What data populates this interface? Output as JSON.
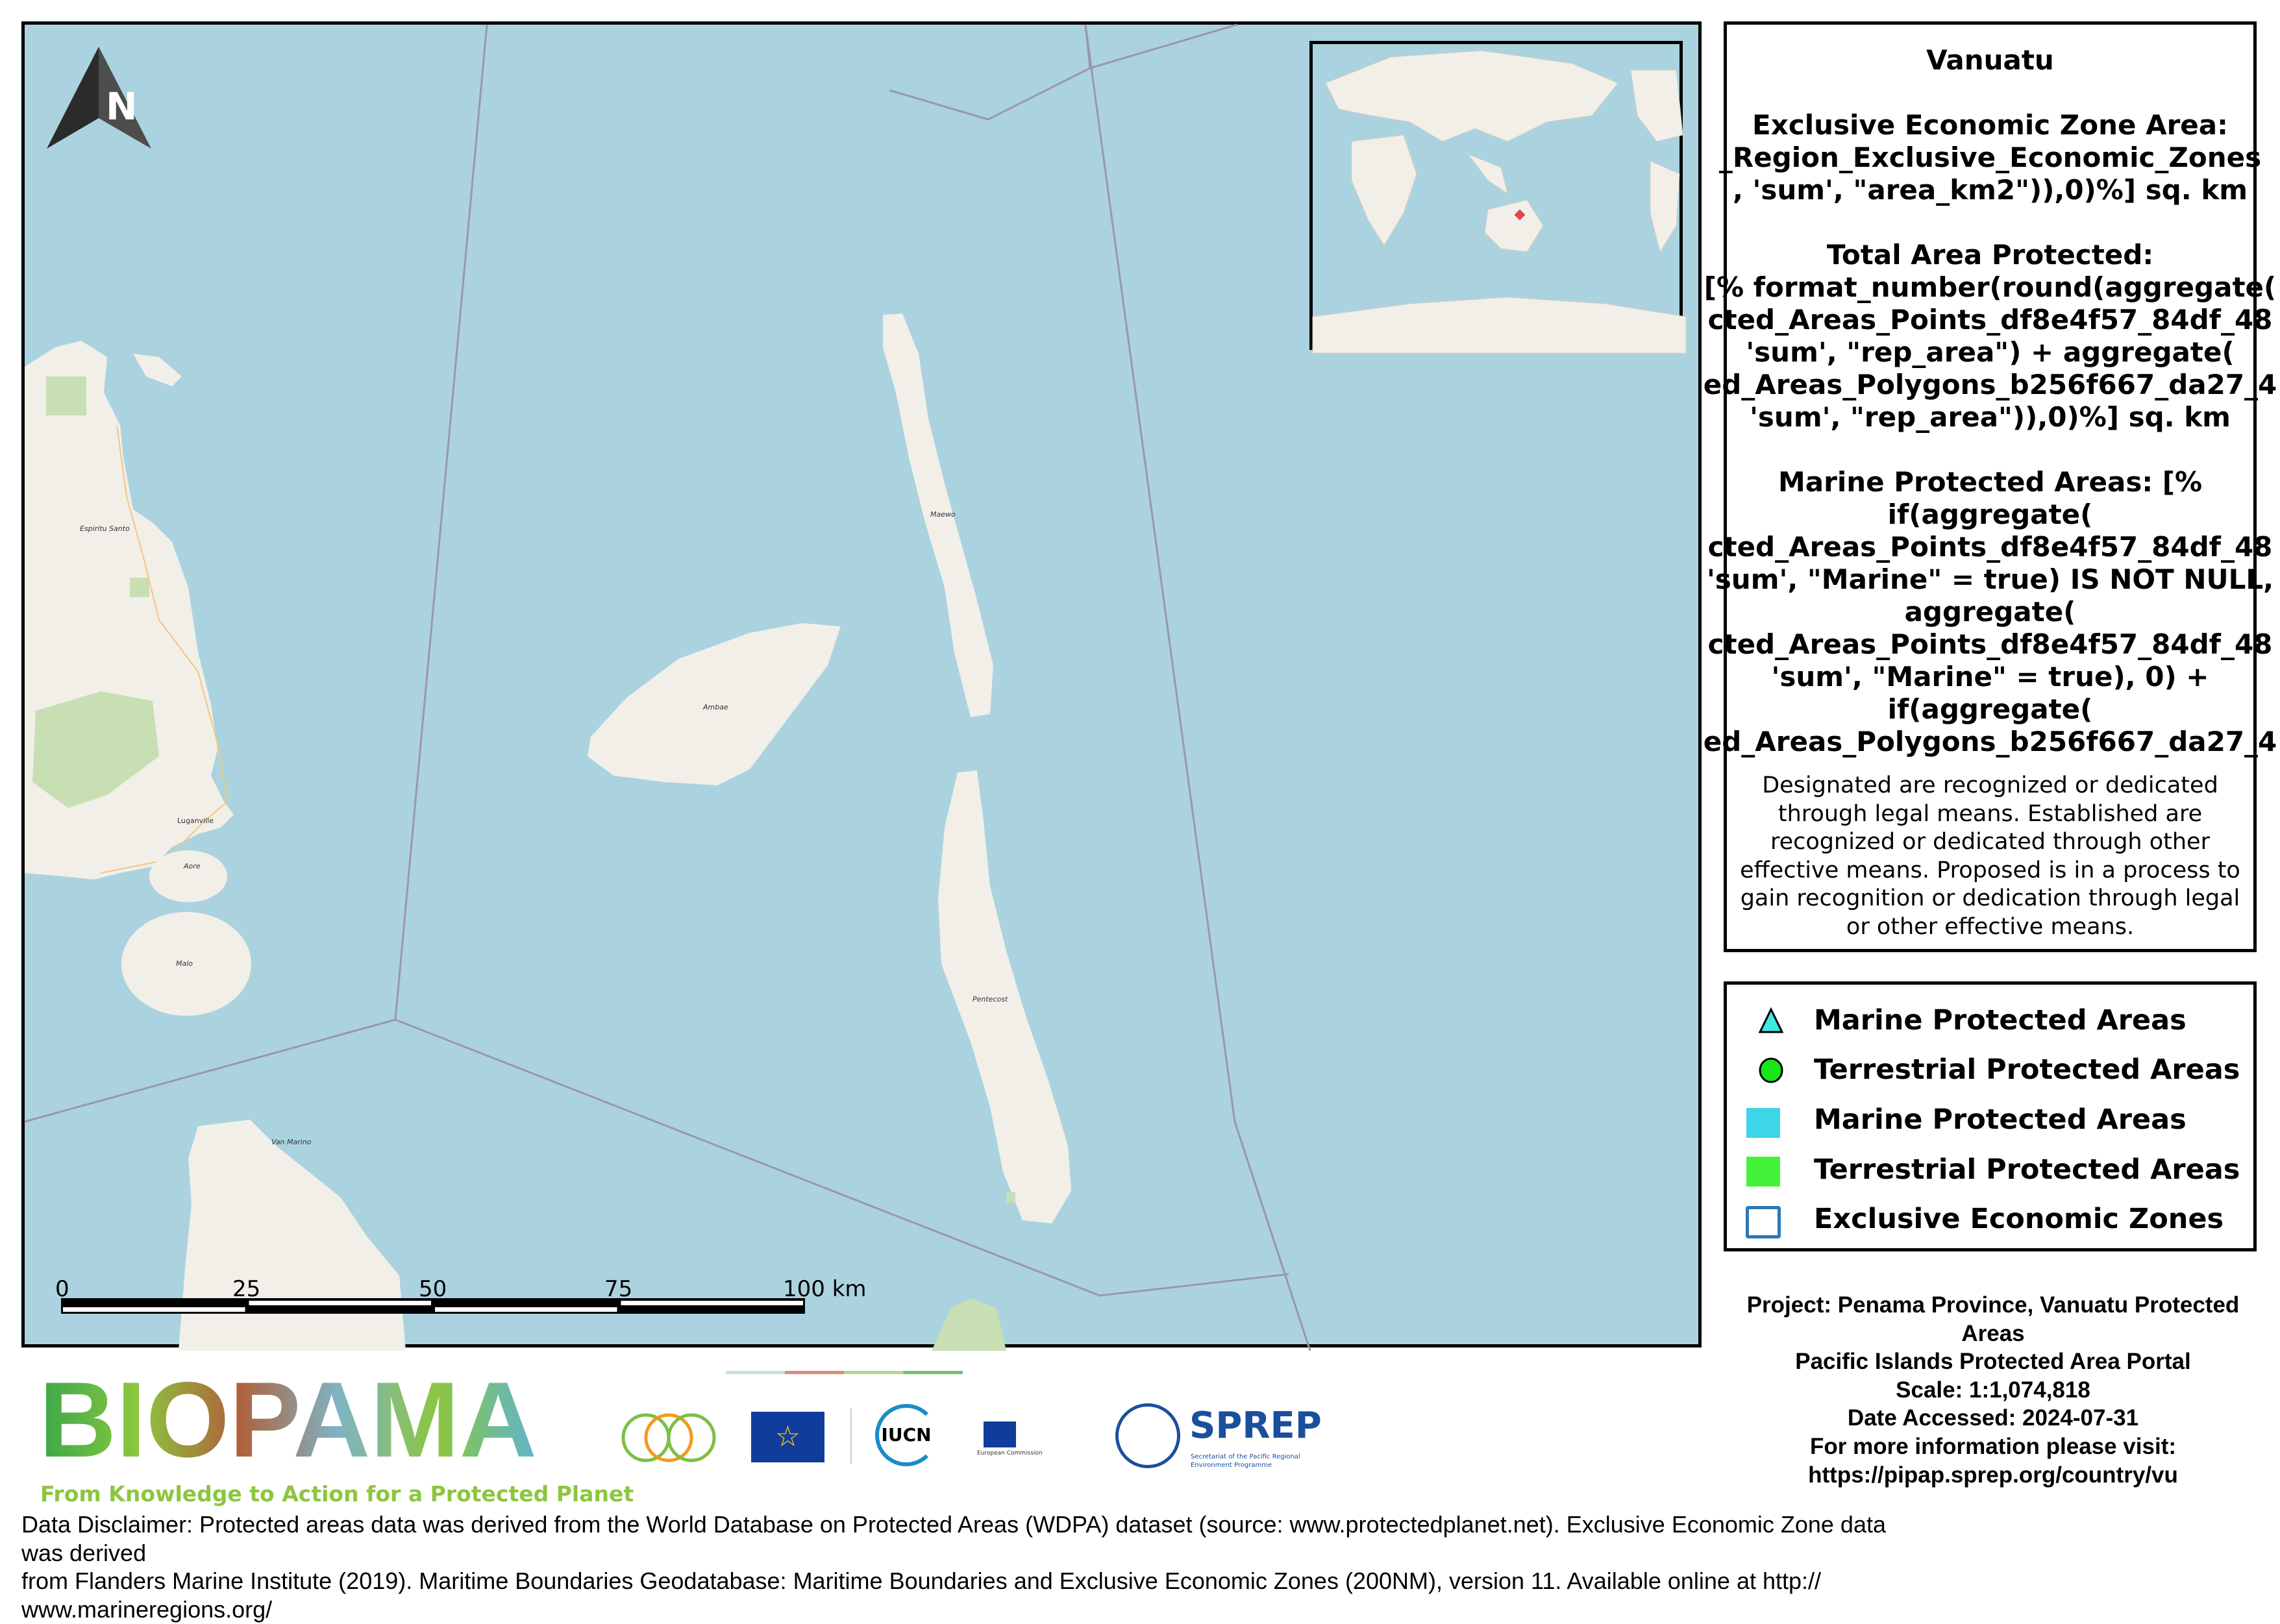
{
  "map": {
    "place_labels": [
      "Espiritu Santo",
      "Luganville",
      "Aore",
      "Malo",
      "Ambae",
      "Maewo",
      "Pentecost",
      "Van Marino"
    ],
    "north_arrow_label": "N",
    "scale_bar": {
      "labels": [
        "0",
        "25",
        "50",
        "75",
        "100 km"
      ]
    },
    "colors": {
      "sea": "#aad3df",
      "land": "#f2efe9",
      "park": "#c8dfb4",
      "eez_line": "#9b95b0"
    }
  },
  "inset_map": {
    "marker_color": "#e0474c"
  },
  "info_panel": {
    "lines": [
      "Vanuatu",
      "",
      "Exclusive Economic Zone Area:",
      "_Region_Exclusive_Economic_Zones",
      ", 'sum', \"area_km2\")),0)%] sq. km",
      "",
      "Total Area Protected:",
      "[% format_number(round(aggregate(",
      "cted_Areas_Points_df8e4f57_84df_48",
      "'sum', \"rep_area\") + aggregate(",
      "ed_Areas_Polygons_b256f667_da27_4",
      "'sum', \"rep_area\")),0)%] sq. km",
      "",
      "Marine Protected Areas: [%",
      "if(aggregate(",
      "cted_Areas_Points_df8e4f57_84df_48",
      "'sum', \"Marine\" = true) IS NOT NULL,",
      "aggregate(",
      "cted_Areas_Points_df8e4f57_84df_48",
      "'sum', \"Marine\" = true), 0) +",
      "if(aggregate(",
      "ed_Areas_Polygons_b256f667_da27_4"
    ],
    "description_lines": [
      "Designated are recognized or dedicated",
      "through legal means. Established are",
      "recognized or dedicated through other",
      "effective means. Proposed is in a process to",
      "gain recognition or dedication through legal",
      "or other effective means."
    ]
  },
  "legend": {
    "items": [
      {
        "label": "Marine Protected Areas",
        "symbol": "triangle",
        "color": "#3ee8e0"
      },
      {
        "label": "Terrestrial Protected Areas",
        "symbol": "circle",
        "color": "#17e619"
      },
      {
        "label": "Marine Protected Areas",
        "symbol": "fill",
        "color": "#3dd5e8"
      },
      {
        "label": "Terrestrial Protected Areas",
        "symbol": "fill",
        "color": "#45f23a"
      },
      {
        "label": "Exclusive Economic Zones",
        "symbol": "outline",
        "color": "#2f77b4"
      }
    ]
  },
  "project_info": {
    "lines": [
      "Project: Penama Province, Vanuatu Protected",
      "Areas",
      "Pacific Islands Protected Area Portal",
      "Scale: 1:1,074,818",
      "Date Accessed: 2024-07-31",
      "For more information please visit:",
      "https://pipap.sprep.org/country/vu"
    ]
  },
  "logos": {
    "biopama": "BIOPAMA",
    "biopama_tagline": "From Knowledge to Action for a Protected Planet",
    "iucn": "IUCN",
    "sprep": "SPREP",
    "sprep_sub": "Secretariat of the Pacific Regional Environment Programme",
    "eu_commission": "European Commission"
  },
  "disclaimer": {
    "lines": [
      "Data Disclaimer:  Protected areas data was derived from the World Database on Protected Areas (WDPA) dataset (source: www.protectedplanet.net).  Exclusive Economic Zone data",
      "was derived",
      "from Flanders Marine Institute (2019). Maritime Boundaries Geodatabase: Maritime Boundaries and Exclusive Economic Zones  (200NM), version 11. Available online at http://",
      "www.marineregions.org/"
    ]
  }
}
